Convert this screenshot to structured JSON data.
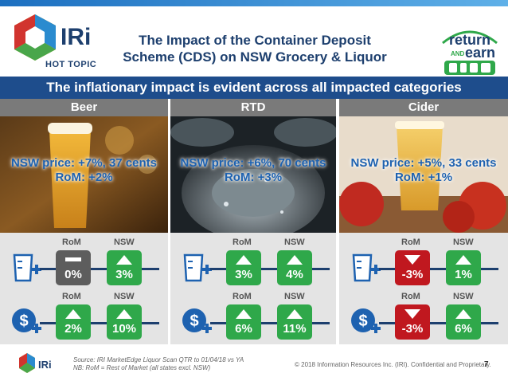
{
  "header": {
    "logo_text": "IRi",
    "hot_topic": "HOT TOPIC",
    "title_line1": "The Impact of the Container Deposit",
    "title_line2": "Scheme (CDS) on NSW Grocery & Liquor",
    "partner_logo_text_1": "return",
    "partner_logo_text_2": "AND",
    "partner_logo_text_3": "earn"
  },
  "banner": "The inflationary impact is evident across all impacted categories",
  "categories": [
    {
      "name": "Beer",
      "price_line1": "NSW price: +7%, 37 cents",
      "price_line2": "RoM: +2%",
      "top": {
        "label_left": "RoM",
        "label_right": "NSW",
        "left_value": "0%",
        "left_dir": "flat",
        "right_value": "3%",
        "right_dir": "up"
      },
      "bottom": {
        "label_left": "RoM",
        "label_right": "NSW",
        "left_value": "2%",
        "left_dir": "up",
        "right_value": "10%",
        "right_dir": "up"
      }
    },
    {
      "name": "RTD",
      "price_line1": "NSW price: +6%, 70 cents",
      "price_line2": "RoM: +3%",
      "top": {
        "label_left": "RoM",
        "label_right": "NSW",
        "left_value": "3%",
        "left_dir": "up",
        "right_value": "4%",
        "right_dir": "up"
      },
      "bottom": {
        "label_left": "RoM",
        "label_right": "NSW",
        "left_value": "6%",
        "left_dir": "up",
        "right_value": "11%",
        "right_dir": "up"
      }
    },
    {
      "name": "Cider",
      "price_line1": "NSW price: +5%, 33 cents",
      "price_line2": "RoM: +1%",
      "top": {
        "label_left": "RoM",
        "label_right": "NSW",
        "left_value": "-3%",
        "left_dir": "down",
        "right_value": "1%",
        "right_dir": "up"
      },
      "bottom": {
        "label_left": "RoM",
        "label_right": "NSW",
        "left_value": "-3%",
        "left_dir": "down",
        "right_value": "6%",
        "right_dir": "up"
      }
    }
  ],
  "icons": {
    "volume": "measuring-jug-plus-icon",
    "value": "dollar-plus-icon"
  },
  "colors": {
    "up": "#2fa84a",
    "down": "#c0181f",
    "flat": "#5d5d5d",
    "brand": "#1e4d8c"
  },
  "footer": {
    "source": "Source: IRI MarketEdge Liquor Scan QTR to 01/04/18 vs YA",
    "note": "NB: RoM = Rest of Market (all states excl. NSW)",
    "copyright": "© 2018 Information Resources Inc. (IRI). Confidential and Proprietary.",
    "page": "7"
  }
}
